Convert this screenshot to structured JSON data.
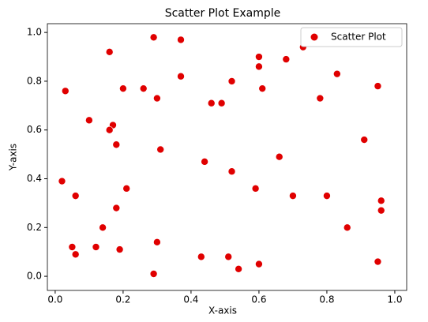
{
  "chart_data": {
    "type": "scatter",
    "title": "Scatter Plot Example",
    "xlabel": "X-axis",
    "ylabel": "Y-axis",
    "legend": "upper right",
    "series": [
      {
        "name": "Scatter Plot",
        "color": "#e00000",
        "x": [
          0.29,
          0.37,
          0.16,
          0.03,
          0.1,
          0.17,
          0.16,
          0.18,
          0.2,
          0.26,
          0.3,
          0.37,
          0.31,
          0.46,
          0.49,
          0.52,
          0.6,
          0.6,
          0.61,
          0.68,
          0.73,
          0.83,
          0.78,
          0.95,
          0.91,
          0.66,
          0.44,
          0.52,
          0.02,
          0.06,
          0.21,
          0.59,
          0.7,
          0.8,
          0.96,
          0.96,
          0.18,
          0.14,
          0.86,
          0.05,
          0.06,
          0.12,
          0.19,
          0.3,
          0.43,
          0.51,
          0.6,
          0.54,
          0.29,
          0.95
        ],
        "values": [
          0.98,
          0.97,
          0.92,
          0.76,
          0.64,
          0.62,
          0.6,
          0.54,
          0.77,
          0.77,
          0.73,
          0.82,
          0.52,
          0.71,
          0.71,
          0.8,
          0.9,
          0.86,
          0.77,
          0.89,
          0.94,
          0.83,
          0.73,
          0.78,
          0.56,
          0.49,
          0.47,
          0.43,
          0.39,
          0.33,
          0.36,
          0.36,
          0.33,
          0.33,
          0.31,
          0.27,
          0.28,
          0.2,
          0.2,
          0.12,
          0.09,
          0.12,
          0.11,
          0.14,
          0.08,
          0.08,
          0.05,
          0.03,
          0.01,
          0.06
        ]
      }
    ],
    "xlim": [
      -0.023,
      1.035
    ],
    "ylim": [
      -0.058,
      1.036
    ],
    "xticks": [
      {
        "value": 0,
        "label": "0.0"
      },
      {
        "value": 0.2,
        "label": "0.2"
      },
      {
        "value": 0.4,
        "label": "0.4"
      },
      {
        "value": 0.6,
        "label": "0.6"
      },
      {
        "value": 0.8,
        "label": "0.8"
      },
      {
        "value": 1,
        "label": "1.0"
      }
    ],
    "yticks": [
      {
        "value": 0,
        "label": "0.0"
      },
      {
        "value": 0.2,
        "label": "0.2"
      },
      {
        "value": 0.4,
        "label": "0.4"
      },
      {
        "value": 0.6,
        "label": "0.6"
      },
      {
        "value": 0.8,
        "label": "0.8"
      },
      {
        "value": 1,
        "label": "1.0"
      }
    ]
  }
}
